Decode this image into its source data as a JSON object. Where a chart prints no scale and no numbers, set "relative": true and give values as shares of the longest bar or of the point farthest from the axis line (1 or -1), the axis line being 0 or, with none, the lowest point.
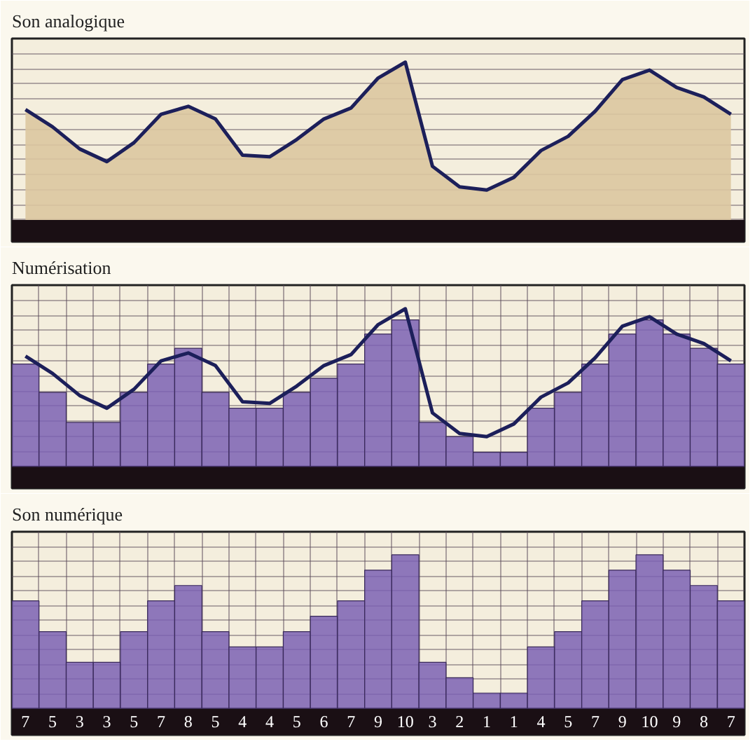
{
  "chart_data": [
    {
      "type": "area",
      "title": "Son analogique",
      "relative": true,
      "grid": "y",
      "tick_labels": false,
      "categories": [
        null,
        null,
        null,
        null,
        null,
        null,
        null,
        null,
        null,
        null,
        null,
        null,
        null,
        null,
        null,
        null,
        null,
        null,
        null,
        null,
        null,
        null,
        null,
        null,
        null,
        null,
        null
      ],
      "series": [
        {
          "color": "#dcc6a0",
          "values": [
            0.7,
            0.59,
            0.45,
            0.37,
            0.49,
            0.67,
            0.72,
            0.64,
            0.41,
            0.4,
            0.51,
            0.64,
            0.71,
            0.9,
            1,
            0.34,
            0.21,
            0.19,
            0.27,
            0.44,
            0.53,
            0.69,
            0.89,
            0.95,
            0.84,
            0.78,
            0.67
          ]
        },
        {
          "type": "line",
          "color": "#1c1f5a",
          "values": [
            0.7,
            0.59,
            0.45,
            0.37,
            0.49,
            0.67,
            0.72,
            0.64,
            0.41,
            0.4,
            0.51,
            0.64,
            0.71,
            0.9,
            1,
            0.34,
            0.21,
            0.19,
            0.27,
            0.44,
            0.53,
            0.69,
            0.89,
            0.95,
            0.84,
            0.78,
            0.67
          ]
        }
      ]
    },
    {
      "type": "bar",
      "title": "Numérisation",
      "relative": true,
      "grid": true,
      "tick_labels": false,
      "categories": [
        null,
        null,
        null,
        null,
        null,
        null,
        null,
        null,
        null,
        null,
        null,
        null,
        null,
        null,
        null,
        null,
        null,
        null,
        null,
        null,
        null,
        null,
        null,
        null,
        null,
        null,
        null
      ],
      "series": [
        {
          "color": "#7b62b4",
          "values": [
            0.65,
            0.47,
            0.28,
            0.28,
            0.47,
            0.65,
            0.75,
            0.47,
            0.37,
            0.37,
            0.47,
            0.56,
            0.65,
            0.84,
            0.93,
            0.28,
            0.19,
            0.09,
            0.09,
            0.37,
            0.47,
            0.65,
            0.84,
            0.93,
            0.84,
            0.75,
            0.65
          ]
        },
        {
          "type": "line",
          "color": "#1c1f5a",
          "values": [
            0.7,
            0.59,
            0.45,
            0.37,
            0.49,
            0.67,
            0.72,
            0.64,
            0.41,
            0.4,
            0.51,
            0.64,
            0.71,
            0.9,
            1,
            0.34,
            0.21,
            0.19,
            0.27,
            0.44,
            0.53,
            0.69,
            0.89,
            0.95,
            0.84,
            0.78,
            0.67
          ]
        }
      ]
    },
    {
      "type": "bar",
      "title": "Son numérique",
      "grid": true,
      "data_labels": true,
      "tick_labels": false,
      "color": "#7b62b4",
      "categories": [
        null,
        null,
        null,
        null,
        null,
        null,
        null,
        null,
        null,
        null,
        null,
        null,
        null,
        null,
        null,
        null,
        null,
        null,
        null,
        null,
        null,
        null,
        null,
        null,
        null,
        null,
        null
      ],
      "values": [
        7,
        5,
        3,
        3,
        5,
        7,
        8,
        5,
        4,
        4,
        5,
        6,
        7,
        9,
        10,
        3,
        2,
        1,
        1,
        4,
        5,
        7,
        9,
        10,
        9,
        8,
        7
      ]
    }
  ]
}
